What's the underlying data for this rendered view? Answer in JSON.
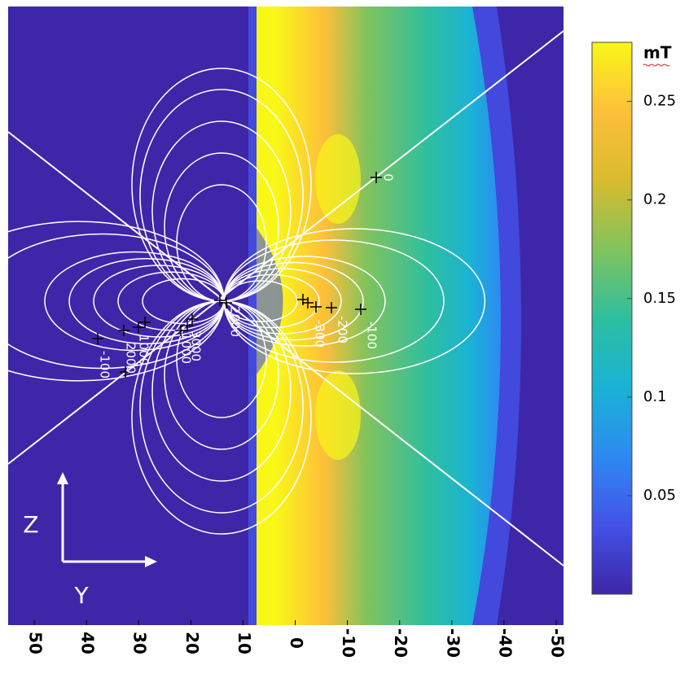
{
  "chart_data": {
    "type": "heatmap",
    "colorbar_label": "mT",
    "clim": [
      0,
      0.28
    ],
    "colorbar_ticks": [
      0.05,
      0.1,
      0.15,
      0.2,
      0.25
    ],
    "colormap": [
      "#3e26a8",
      "#4352e8",
      "#2d8af2",
      "#1ab2d6",
      "#2ebf9f",
      "#81c35c",
      "#d9bb2f",
      "#fdbf3a",
      "#f9f718"
    ],
    "xlim": [
      55,
      -51.4
    ],
    "xticks": [
      50,
      40,
      30,
      20,
      10,
      0,
      -10,
      -20,
      -30,
      -40,
      -50
    ],
    "axis_labels": {
      "vertical": "Z",
      "horizontal": "Y"
    },
    "contour_labels": [
      0,
      -100,
      -200,
      -300,
      2000,
      3000,
      1000,
      -100,
      1000,
      2000
    ]
  }
}
